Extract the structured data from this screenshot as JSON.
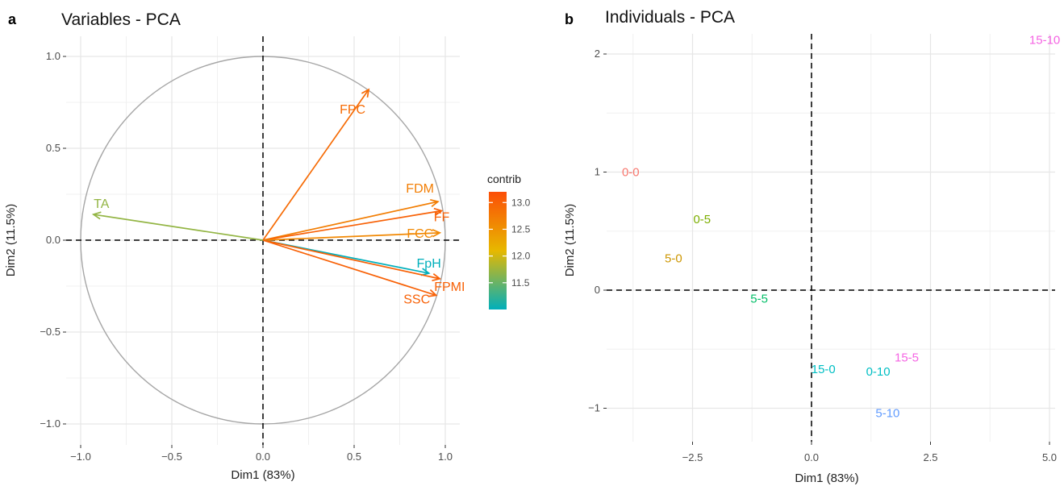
{
  "chart_data": [
    {
      "panel_letter": "a",
      "type": "scatter",
      "subtype": "pca-variable-correlation-circle",
      "title": "Variables - PCA",
      "xlabel": "Dim1 (83%)",
      "ylabel": "Dim2 (11.5%)",
      "xlim": [
        -1.0,
        1.0
      ],
      "ylim": [
        -1.0,
        1.0
      ],
      "xticks": [
        -1.0,
        -0.5,
        0.0,
        0.5,
        1.0
      ],
      "xtick_labels": [
        "−1.0",
        "−0.5",
        "0.0",
        "0.5",
        "1.0"
      ],
      "yticks": [
        -1.0,
        -0.5,
        0.0,
        0.5,
        1.0
      ],
      "ytick_labels": [
        "−1.0",
        "−0.5",
        "0.0",
        "0.5",
        "1.0"
      ],
      "grid": true,
      "unit_circle": true,
      "legend": {
        "title": "contrib",
        "position": "right",
        "ticks": [
          13.0,
          12.5,
          12.0,
          11.5
        ],
        "tick_labels": [
          "13.0",
          "12.5",
          "12.0",
          "11.5"
        ],
        "min": 11.0,
        "max": 13.2,
        "colors": [
          "#00AFBB",
          "#E7B800",
          "#FC4E07"
        ]
      },
      "variables": [
        {
          "name": "FPC",
          "x": 0.58,
          "y": 0.82,
          "contrib": 12.9
        },
        {
          "name": "FDM",
          "x": 0.96,
          "y": 0.21,
          "contrib": 12.7
        },
        {
          "name": "FF",
          "x": 0.98,
          "y": 0.16,
          "contrib": 13.0
        },
        {
          "name": "FCC",
          "x": 0.97,
          "y": 0.04,
          "contrib": 12.6
        },
        {
          "name": "FpH",
          "x": 0.91,
          "y": -0.18,
          "contrib": 11.0
        },
        {
          "name": "FPMI",
          "x": 0.97,
          "y": -0.21,
          "contrib": 13.0
        },
        {
          "name": "SSC",
          "x": 0.95,
          "y": -0.3,
          "contrib": 13.0
        },
        {
          "name": "TA",
          "x": -0.93,
          "y": 0.14,
          "contrib": 11.7
        }
      ]
    },
    {
      "panel_letter": "b",
      "type": "scatter",
      "subtype": "pca-individuals",
      "title": "Individuals - PCA",
      "xlabel": "Dim1 (83%)",
      "ylabel": "Dim2 (11.5%)",
      "xlim": [
        -4.2,
        5.2
      ],
      "ylim": [
        -1.25,
        2.25
      ],
      "xticks": [
        -2.5,
        0.0,
        2.5,
        5.0
      ],
      "xtick_labels": [
        "−2.5",
        "0.0",
        "2.5",
        "5.0"
      ],
      "yticks": [
        -1,
        0,
        1,
        2
      ],
      "ytick_labels": [
        "−1",
        "0",
        "1",
        "2"
      ],
      "grid": true,
      "points": [
        {
          "label": "15-10",
          "x": 4.9,
          "y": 2.12,
          "color": "#F564E3"
        },
        {
          "label": "0-0",
          "x": -3.8,
          "y": 1.0,
          "color": "#F8766D"
        },
        {
          "label": "0-5",
          "x": -2.3,
          "y": 0.6,
          "color": "#7CAE00"
        },
        {
          "label": "5-0",
          "x": -2.9,
          "y": 0.27,
          "color": "#CD9600"
        },
        {
          "label": "5-5",
          "x": -1.1,
          "y": -0.07,
          "color": "#00BE67"
        },
        {
          "label": "15-5",
          "x": 2.0,
          "y": -0.57,
          "color": "#F564E3"
        },
        {
          "label": "15-0",
          "x": 0.25,
          "y": -0.67,
          "color": "#00BFC4"
        },
        {
          "label": "0-10",
          "x": 1.4,
          "y": -0.69,
          "color": "#00BFC4"
        },
        {
          "label": "5-10",
          "x": 1.6,
          "y": -1.04,
          "color": "#619CFF"
        }
      ]
    }
  ]
}
